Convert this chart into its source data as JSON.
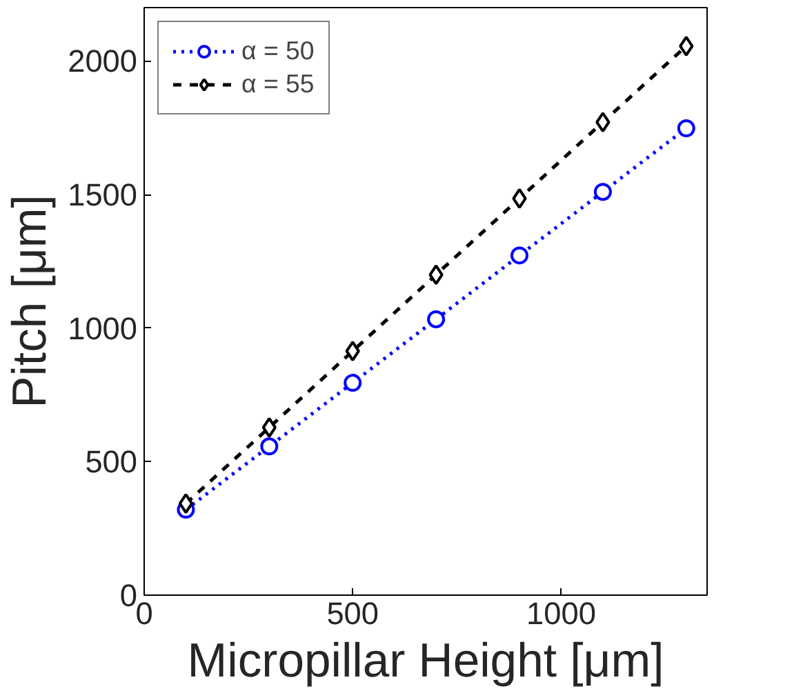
{
  "chart_data": {
    "type": "line",
    "xlabel": "Micropillar Height [μm]",
    "ylabel": "Pitch [μm]",
    "x": [
      100,
      300,
      500,
      700,
      900,
      1100,
      1300
    ],
    "series": [
      {
        "name": "α = 50",
        "color": "#0000ff",
        "marker": "circle",
        "line_style": "dotted",
        "values": [
          320,
          557,
          795,
          1033,
          1272,
          1510,
          1748
        ]
      },
      {
        "name": "α = 55",
        "color": "#000000",
        "marker": "diamond",
        "line_style": "dashed",
        "values": [
          343,
          628,
          914,
          1200,
          1485,
          1771,
          2056
        ]
      }
    ],
    "xlim": [
      0,
      1350
    ],
    "ylim": [
      0,
      2200
    ],
    "xticks": [
      0,
      500,
      1000
    ],
    "yticks": [
      0,
      500,
      1000,
      1500,
      2000
    ],
    "grid": false,
    "legend": "top left"
  }
}
